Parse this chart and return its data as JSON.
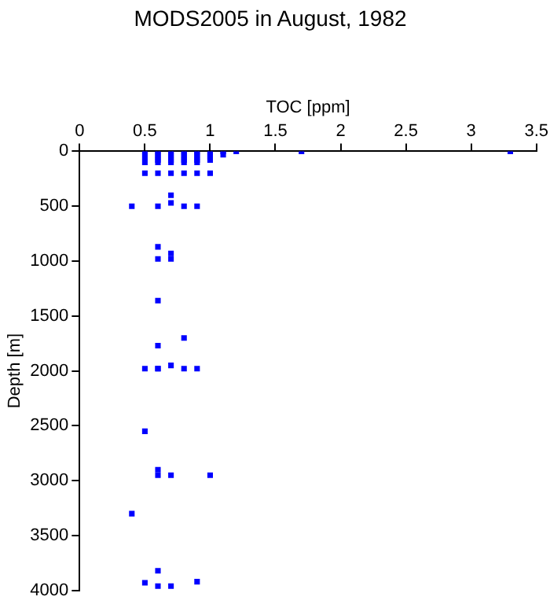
{
  "chart_data": {
    "type": "scatter",
    "title": "MODS2005 in August, 1982",
    "xlabel": "TOC [ppm]",
    "ylabel": "Depth [m]",
    "x": [
      0.5,
      0.6,
      0.7,
      0.8,
      0.9,
      1.0,
      1.1,
      1.2,
      1.7,
      3.3,
      0.6,
      0.7,
      0.8,
      0.9,
      1.0,
      1.1,
      0.5,
      0.6,
      0.7,
      0.8,
      0.9,
      1.0,
      0.6,
      0.7,
      0.8,
      0.9,
      1.0,
      0.5,
      0.6,
      0.7,
      0.8,
      0.9,
      0.5,
      0.6,
      0.7,
      0.8,
      0.9,
      1.0,
      0.7,
      0.7,
      0.4,
      0.6,
      0.8,
      0.9,
      0.6,
      0.7,
      0.6,
      0.7,
      0.6,
      0.6,
      0.8,
      0.6,
      0.5,
      0.6,
      0.7,
      0.8,
      0.9,
      0.5,
      0.6,
      0.6,
      0.7,
      1.0,
      0.4,
      0.6,
      0.9,
      0.5,
      0.6,
      0.7
    ],
    "values": [
      0,
      0,
      0,
      0,
      0,
      0,
      0,
      0,
      0,
      0,
      30,
      30,
      30,
      30,
      30,
      30,
      50,
      50,
      50,
      50,
      50,
      50,
      80,
      80,
      80,
      80,
      80,
      100,
      100,
      100,
      100,
      100,
      200,
      200,
      200,
      200,
      200,
      200,
      400,
      470,
      500,
      500,
      500,
      500,
      870,
      930,
      980,
      980,
      1360,
      1770,
      1700,
      1980,
      1980,
      1980,
      1950,
      1980,
      1980,
      2550,
      2900,
      2950,
      2950,
      2950,
      3300,
      3820,
      3920,
      3930,
      3960,
      3960
    ],
    "color": "#0000ff",
    "marker": "square",
    "xlim": [
      0,
      3.5
    ],
    "xticks": [
      0,
      0.5,
      1,
      1.5,
      2,
      2.5,
      3,
      3.5
    ],
    "ylim": [
      4000,
      0
    ],
    "yticks": [
      0,
      500,
      1000,
      1500,
      2000,
      2500,
      3000,
      3500,
      4000
    ],
    "grid": false,
    "legend": false
  }
}
